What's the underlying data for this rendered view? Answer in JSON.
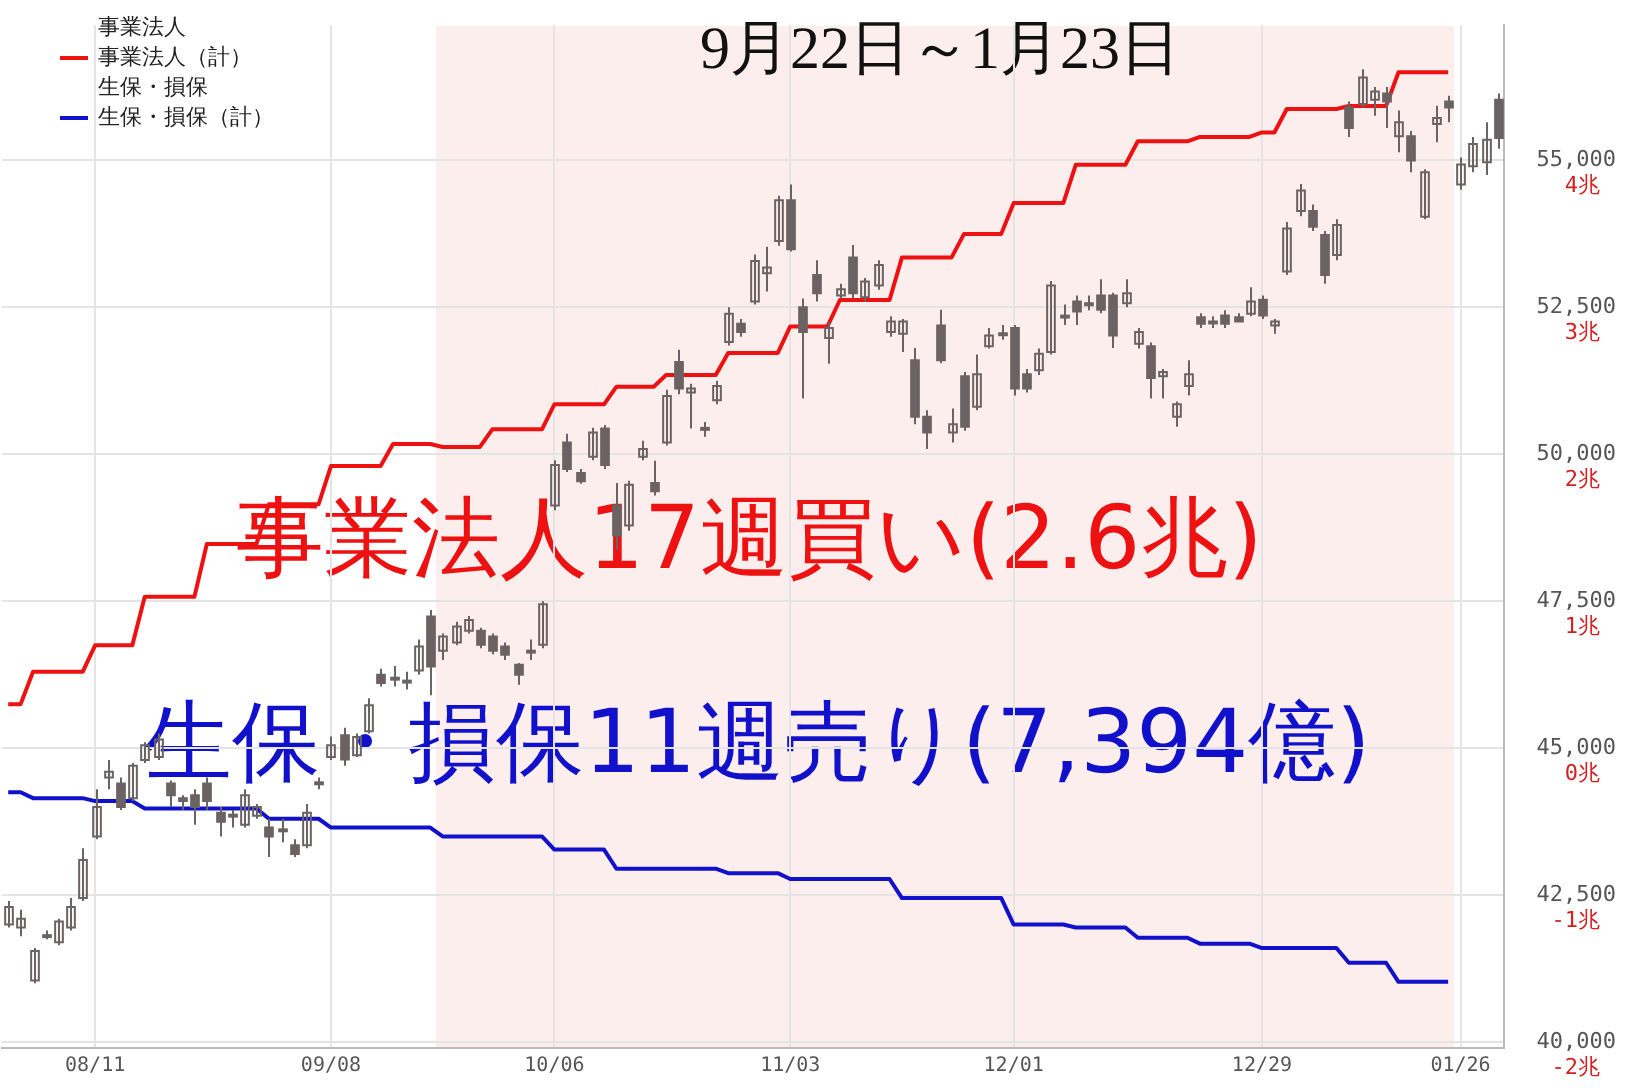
{
  "chart_data": {
    "type": "candlestick",
    "title": "9月22日～1月23日",
    "color": "#6b6363",
    "categories": [
      null,
      null,
      null,
      null,
      null,
      null,
      null,
      "08/11",
      null,
      null,
      null,
      null,
      null,
      null,
      null,
      null,
      null,
      null,
      null,
      null,
      null,
      null,
      null,
      null,
      null,
      null,
      "09/08",
      null,
      null,
      null,
      null,
      null,
      null,
      null,
      null,
      null,
      null,
      null,
      null,
      null,
      null,
      null,
      null,
      null,
      "10/06",
      null,
      null,
      null,
      null,
      null,
      null,
      null,
      null,
      null,
      null,
      null,
      null,
      null,
      null,
      null,
      null,
      null,
      null,
      "11/03",
      null,
      null,
      null,
      null,
      null,
      null,
      null,
      null,
      null,
      null,
      null,
      null,
      null,
      null,
      null,
      null,
      null,
      "12/01",
      null,
      null,
      null,
      null,
      null,
      null,
      null,
      null,
      null,
      null,
      null,
      null,
      null,
      null,
      null,
      null,
      null,
      null,
      null,
      "12/29",
      null,
      null,
      null,
      null,
      null,
      null,
      null,
      null,
      null,
      null,
      null,
      null,
      null,
      null,
      null,
      "01/26",
      null,
      null,
      null
    ],
    "ohlc": [
      [
        42000,
        42400,
        41950,
        42300
      ],
      [
        41950,
        42250,
        41800,
        42100
      ],
      [
        41050,
        41600,
        41000,
        41550
      ],
      [
        41800,
        41900,
        41750,
        41820
      ],
      [
        41700,
        42100,
        41650,
        42050
      ],
      [
        41950,
        42450,
        41900,
        42300
      ],
      [
        42450,
        43300,
        42400,
        43100
      ],
      [
        43500,
        44300,
        43450,
        44000
      ],
      [
        44500,
        44800,
        44300,
        44600
      ],
      [
        44400,
        44500,
        43950,
        44000
      ],
      [
        44150,
        44750,
        44100,
        44700
      ],
      [
        44800,
        45100,
        44750,
        45050
      ],
      [
        44850,
        45250,
        44800,
        45150
      ],
      [
        44400,
        44450,
        44000,
        44200
      ],
      [
        44150,
        44200,
        43950,
        44100
      ],
      [
        44200,
        44300,
        43700,
        44000
      ],
      [
        44400,
        44500,
        43950,
        44100
      ],
      [
        43900,
        44000,
        43500,
        43750
      ],
      [
        43850,
        43950,
        43650,
        43870
      ],
      [
        43700,
        44300,
        43650,
        44200
      ],
      [
        43850,
        44050,
        43800,
        44000
      ],
      [
        43650,
        43800,
        43150,
        43500
      ],
      [
        43600,
        43800,
        43400,
        43620
      ],
      [
        43350,
        43450,
        43150,
        43200
      ],
      [
        43350,
        44050,
        43300,
        43900
      ],
      [
        44400,
        44500,
        44300,
        44420
      ],
      [
        44850,
        45200,
        44800,
        45050
      ],
      [
        45220,
        45350,
        44700,
        44810
      ],
      [
        44880,
        45250,
        44850,
        45190
      ],
      [
        45290,
        45850,
        45250,
        45730
      ],
      [
        46250,
        46350,
        46050,
        46110
      ],
      [
        46200,
        46400,
        46050,
        46190
      ],
      [
        46150,
        46300,
        46000,
        46120
      ],
      [
        46320,
        46850,
        46250,
        46730
      ],
      [
        47240,
        47350,
        45900,
        46390
      ],
      [
        46660,
        46950,
        46500,
        46900
      ],
      [
        46800,
        47150,
        46750,
        47070
      ],
      [
        47000,
        47250,
        46950,
        47180
      ],
      [
        47000,
        47050,
        46700,
        46760
      ],
      [
        46900,
        46950,
        46600,
        46660
      ],
      [
        46730,
        46800,
        46500,
        46590
      ],
      [
        46420,
        46450,
        46080,
        46250
      ],
      [
        46650,
        46850,
        46500,
        46660
      ],
      [
        46760,
        47500,
        46700,
        47450
      ],
      [
        49130,
        49900,
        49050,
        49820
      ],
      [
        50200,
        50350,
        49700,
        49750
      ],
      [
        49680,
        49750,
        49500,
        49540
      ],
      [
        49960,
        50450,
        49900,
        50370
      ],
      [
        50440,
        50500,
        49750,
        49820
      ],
      [
        49130,
        49510,
        48380,
        48620
      ],
      [
        48790,
        49550,
        48700,
        49480
      ],
      [
        49960,
        50230,
        49900,
        50090
      ],
      [
        49510,
        49890,
        49300,
        49370
      ],
      [
        50200,
        51100,
        50150,
        50990
      ],
      [
        51570,
        51780,
        51020,
        51120
      ],
      [
        51050,
        51200,
        50440,
        51120
      ],
      [
        50440,
        50550,
        50300,
        50450
      ],
      [
        50920,
        51250,
        50850,
        51160
      ],
      [
        51910,
        52500,
        51850,
        52390
      ],
      [
        52220,
        52300,
        52000,
        52080
      ],
      [
        52600,
        53400,
        52550,
        53290
      ],
      [
        53080,
        53530,
        52770,
        53180
      ],
      [
        53630,
        54400,
        53550,
        54320
      ],
      [
        54320,
        54590,
        53450,
        53490
      ],
      [
        52500,
        52650,
        50950,
        52080
      ],
      [
        53050,
        53300,
        52600,
        52740
      ],
      [
        51980,
        52250,
        51540,
        52150
      ],
      [
        52700,
        52900,
        52650,
        52810
      ],
      [
        53350,
        53560,
        52650,
        52740
      ],
      [
        52670,
        53000,
        52600,
        52940
      ],
      [
        52870,
        53300,
        52800,
        53220
      ],
      [
        52080,
        52350,
        52000,
        52260
      ],
      [
        52050,
        52300,
        51740,
        52260
      ],
      [
        51600,
        51810,
        50510,
        50640
      ],
      [
        50640,
        50750,
        50090,
        50370
      ],
      [
        52190,
        52460,
        51550,
        51600
      ],
      [
        50370,
        50780,
        50200,
        50510
      ],
      [
        51330,
        51400,
        50400,
        50470
      ],
      [
        50810,
        51700,
        50750,
        51360
      ],
      [
        51840,
        52150,
        51800,
        52020
      ],
      [
        52050,
        52200,
        51950,
        52060
      ],
      [
        52150,
        52200,
        51000,
        51120
      ],
      [
        51360,
        51450,
        51050,
        51120
      ],
      [
        51430,
        51800,
        51350,
        51710
      ],
      [
        51740,
        52950,
        51700,
        52870
      ],
      [
        52350,
        52550,
        52200,
        52360
      ],
      [
        52600,
        52700,
        52200,
        52430
      ],
      [
        52570,
        52700,
        52450,
        52560
      ],
      [
        52700,
        52980,
        52400,
        52460
      ],
      [
        52700,
        52750,
        51810,
        52020
      ],
      [
        52570,
        52980,
        52500,
        52740
      ],
      [
        51880,
        52150,
        51800,
        52080
      ],
      [
        51840,
        51900,
        50950,
        51300
      ],
      [
        51330,
        51450,
        50950,
        51400
      ],
      [
        50640,
        50900,
        50470,
        50850
      ],
      [
        51160,
        51600,
        51000,
        51360
      ],
      [
        52330,
        52400,
        52150,
        52220
      ],
      [
        52250,
        52350,
        52150,
        52260
      ],
      [
        52360,
        52450,
        52150,
        52220
      ],
      [
        52330,
        52400,
        52250,
        52260
      ],
      [
        52390,
        52840,
        52350,
        52600
      ],
      [
        52630,
        52700,
        52300,
        52360
      ],
      [
        52190,
        52300,
        52050,
        52260
      ],
      [
        53110,
        53950,
        53050,
        53840
      ],
      [
        54140,
        54600,
        54050,
        54490
      ],
      [
        54140,
        54250,
        53800,
        53870
      ],
      [
        53730,
        53800,
        52900,
        53050
      ],
      [
        53390,
        54000,
        53300,
        53900
      ],
      [
        55900,
        56000,
        55400,
        55550
      ],
      [
        55960,
        56550,
        55900,
        56410
      ],
      [
        56030,
        56250,
        55760,
        56170
      ],
      [
        56140,
        56250,
        55550,
        56000
      ],
      [
        55410,
        55850,
        55140,
        55650
      ],
      [
        55410,
        55500,
        54800,
        55000
      ],
      [
        54040,
        54850,
        54000,
        54800
      ],
      [
        55620,
        55930,
        55310,
        55720
      ],
      [
        56000,
        56100,
        55650,
        55900
      ],
      [
        54590,
        55050,
        54500,
        54930
      ],
      [
        54900,
        55400,
        54800,
        55280
      ],
      [
        54970,
        55650,
        54750,
        55350
      ],
      [
        56030,
        56140,
        55200,
        55380
      ]
    ],
    "series": [
      {
        "name": "事業法人（計）",
        "type": "line",
        "axis": "y2",
        "color": "#ee1111",
        "values": [
          0.3,
          0.3,
          0.52,
          0.52,
          0.52,
          0.52,
          0.52,
          0.7,
          0.7,
          0.7,
          0.7,
          1.03,
          1.03,
          1.03,
          1.03,
          1.03,
          1.39,
          1.39,
          1.39,
          1.39,
          1.39,
          1.66,
          1.66,
          1.66,
          1.66,
          1.66,
          1.92,
          1.92,
          1.92,
          1.92,
          1.92,
          2.07,
          2.07,
          2.07,
          2.07,
          2.05,
          2.05,
          2.05,
          2.05,
          2.17,
          2.17,
          2.17,
          2.17,
          2.17,
          2.34,
          2.34,
          2.34,
          2.34,
          2.34,
          2.46,
          2.46,
          2.46,
          2.46,
          2.54,
          2.54,
          2.54,
          2.54,
          2.54,
          2.69,
          2.69,
          2.69,
          2.69,
          2.69,
          2.87,
          2.87,
          2.87,
          2.87,
          3.05,
          3.05,
          3.05,
          3.05,
          3.05,
          3.34,
          3.34,
          3.34,
          3.34,
          3.34,
          3.5,
          3.5,
          3.5,
          3.5,
          3.71,
          3.71,
          3.71,
          3.71,
          3.71,
          3.97,
          3.97,
          3.97,
          3.97,
          3.97,
          4.13,
          4.13,
          4.13,
          4.13,
          4.13,
          4.16,
          4.16,
          4.16,
          4.16,
          4.16,
          4.19,
          4.19,
          4.35,
          4.35,
          4.35,
          4.35,
          4.35,
          4.37,
          4.37,
          4.37,
          4.37,
          4.6,
          4.6,
          4.6,
          4.6,
          4.6,
          null,
          null,
          null,
          null
        ]
      },
      {
        "name": "生保・損保（計）",
        "type": "line",
        "axis": "y2",
        "color": "#1111cc",
        "values": [
          -0.3,
          -0.3,
          -0.34,
          -0.34,
          -0.34,
          -0.34,
          -0.34,
          -0.36,
          -0.36,
          -0.36,
          -0.36,
          -0.41,
          -0.41,
          -0.41,
          -0.41,
          -0.41,
          -0.41,
          -0.41,
          -0.41,
          -0.41,
          -0.41,
          -0.48,
          -0.48,
          -0.48,
          -0.48,
          -0.48,
          -0.54,
          -0.54,
          -0.54,
          -0.54,
          -0.54,
          -0.54,
          -0.54,
          -0.54,
          -0.54,
          -0.6,
          -0.6,
          -0.6,
          -0.6,
          -0.6,
          -0.6,
          -0.6,
          -0.6,
          -0.6,
          -0.69,
          -0.69,
          -0.69,
          -0.69,
          -0.69,
          -0.82,
          -0.82,
          -0.82,
          -0.82,
          -0.82,
          -0.82,
          -0.82,
          -0.82,
          -0.82,
          -0.85,
          -0.85,
          -0.85,
          -0.85,
          -0.85,
          -0.89,
          -0.89,
          -0.89,
          -0.89,
          -0.89,
          -0.89,
          -0.89,
          -0.89,
          -0.89,
          -1.02,
          -1.02,
          -1.02,
          -1.02,
          -1.02,
          -1.02,
          -1.02,
          -1.02,
          -1.02,
          -1.2,
          -1.2,
          -1.2,
          -1.2,
          -1.2,
          -1.22,
          -1.22,
          -1.22,
          -1.22,
          -1.22,
          -1.29,
          -1.29,
          -1.29,
          -1.29,
          -1.29,
          -1.33,
          -1.33,
          -1.33,
          -1.33,
          -1.33,
          -1.36,
          -1.36,
          -1.36,
          -1.36,
          -1.36,
          -1.36,
          -1.36,
          -1.46,
          -1.46,
          -1.46,
          -1.46,
          -1.59,
          -1.59,
          -1.59,
          -1.59,
          -1.59,
          null,
          null,
          null,
          null
        ]
      }
    ],
    "annotations": [
      "事業法人",
      "生保・損保",
      "事業法人17週買い(2.6兆)",
      "生保・損保11週売り(7,394億)"
    ],
    "ylim": [
      39900,
      57300
    ],
    "yticks": [
      {
        "value": 40000,
        "label": "40,000"
      },
      {
        "value": 42500,
        "label": "42,500"
      },
      {
        "value": 45000,
        "label": "45,000"
      },
      {
        "value": 47500,
        "label": "47,500"
      },
      {
        "value": 50000,
        "label": "50,000"
      },
      {
        "value": 52500,
        "label": "52,500"
      },
      {
        "value": 55000,
        "label": "55,000"
      }
    ],
    "y2lim": [
      -2.04,
      4.92
    ],
    "y2ticks": [
      {
        "value": -2,
        "label": "-2兆"
      },
      {
        "value": -1,
        "label": "-1兆"
      },
      {
        "value": 0,
        "label": "0兆"
      },
      {
        "value": 1,
        "label": "1兆"
      },
      {
        "value": 2,
        "label": "2兆"
      },
      {
        "value": 3,
        "label": "3兆"
      },
      {
        "value": 4,
        "label": "4兆"
      }
    ],
    "grid": true,
    "legend": "top left"
  }
}
